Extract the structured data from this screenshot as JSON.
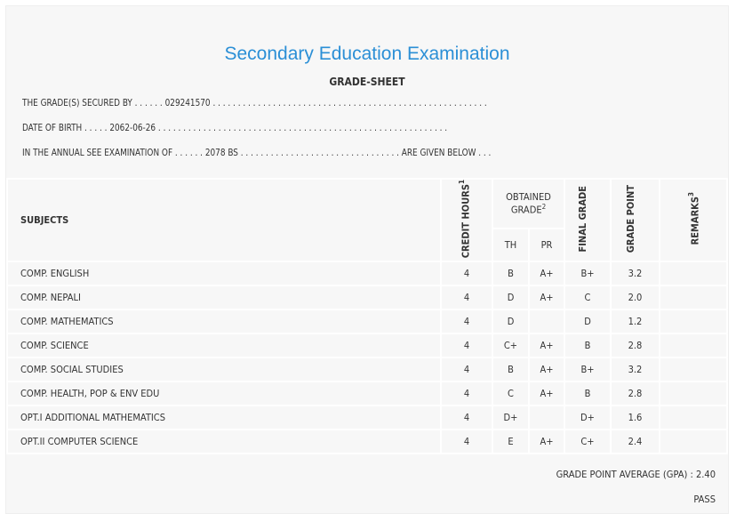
{
  "title": "Secondary Education Examination",
  "subtitle": "GRADE-SHEET",
  "info": {
    "secured_by_label": "THE GRADE(S) SECURED BY . . . . . .",
    "secured_by_value": "029241570",
    "secured_by_trail": ". . . . . . . . . . . . . . . . . . . . . . . . . . . . . . . . . . . . . . . . . . . . . . . . . . . . . . .",
    "dob_label": "DATE OF BIRTH . . . . .",
    "dob_value": "2062-06-26",
    "dob_trail": ". . . . . . . . . . . . . . . . . . . . . . . . . . . . . . . . . . . . . . . . . . . . . . . . . . . . . . . . . .",
    "exam_label": "IN THE ANNUAL SEE EXAMINATION OF . . . . . .",
    "exam_value": "2078 BS",
    "exam_trail": ". . . . . . . . . . . . . . . . . . . . . . . . . . . . . . . .",
    "exam_end": "ARE GIVEN BELOW . . ."
  },
  "headers": {
    "subjects": "SUBJECTS",
    "credit": "CREDIT HOURS",
    "credit_sup": "1",
    "obtained": "OBTAINED GRADE",
    "obtained_sup": "2",
    "th": "TH",
    "pr": "PR",
    "final": "FINAL GRADE",
    "point": "GRADE POINT",
    "remarks": "REMARKS",
    "remarks_sup": "3"
  },
  "rows": [
    {
      "subject": "COMP. ENGLISH",
      "credit": "4",
      "th": "B",
      "pr": "A+",
      "final": "B+",
      "point": "3.2",
      "remarks": ""
    },
    {
      "subject": "COMP. NEPALI",
      "credit": "4",
      "th": "D",
      "pr": "A+",
      "final": "C",
      "point": "2.0",
      "remarks": ""
    },
    {
      "subject": "COMP. MATHEMATICS",
      "credit": "4",
      "th": "D",
      "pr": "",
      "final": "D",
      "point": "1.2",
      "remarks": ""
    },
    {
      "subject": "COMP. SCIENCE",
      "credit": "4",
      "th": "C+",
      "pr": "A+",
      "final": "B",
      "point": "2.8",
      "remarks": ""
    },
    {
      "subject": "COMP. SOCIAL STUDIES",
      "credit": "4",
      "th": "B",
      "pr": "A+",
      "final": "B+",
      "point": "3.2",
      "remarks": ""
    },
    {
      "subject": "COMP. HEALTH, POP & ENV EDU",
      "credit": "4",
      "th": "C",
      "pr": "A+",
      "final": "B",
      "point": "2.8",
      "remarks": ""
    },
    {
      "subject": "OPT.I ADDITIONAL MATHEMATICS",
      "credit": "4",
      "th": "D+",
      "pr": "",
      "final": "D+",
      "point": "1.6",
      "remarks": ""
    },
    {
      "subject": "OPT.II COMPUTER SCIENCE",
      "credit": "4",
      "th": "E",
      "pr": "A+",
      "final": "C+",
      "point": "2.4",
      "remarks": ""
    }
  ],
  "gpa": "GRADE POINT AVERAGE (GPA) : 2.40",
  "result": "PASS"
}
